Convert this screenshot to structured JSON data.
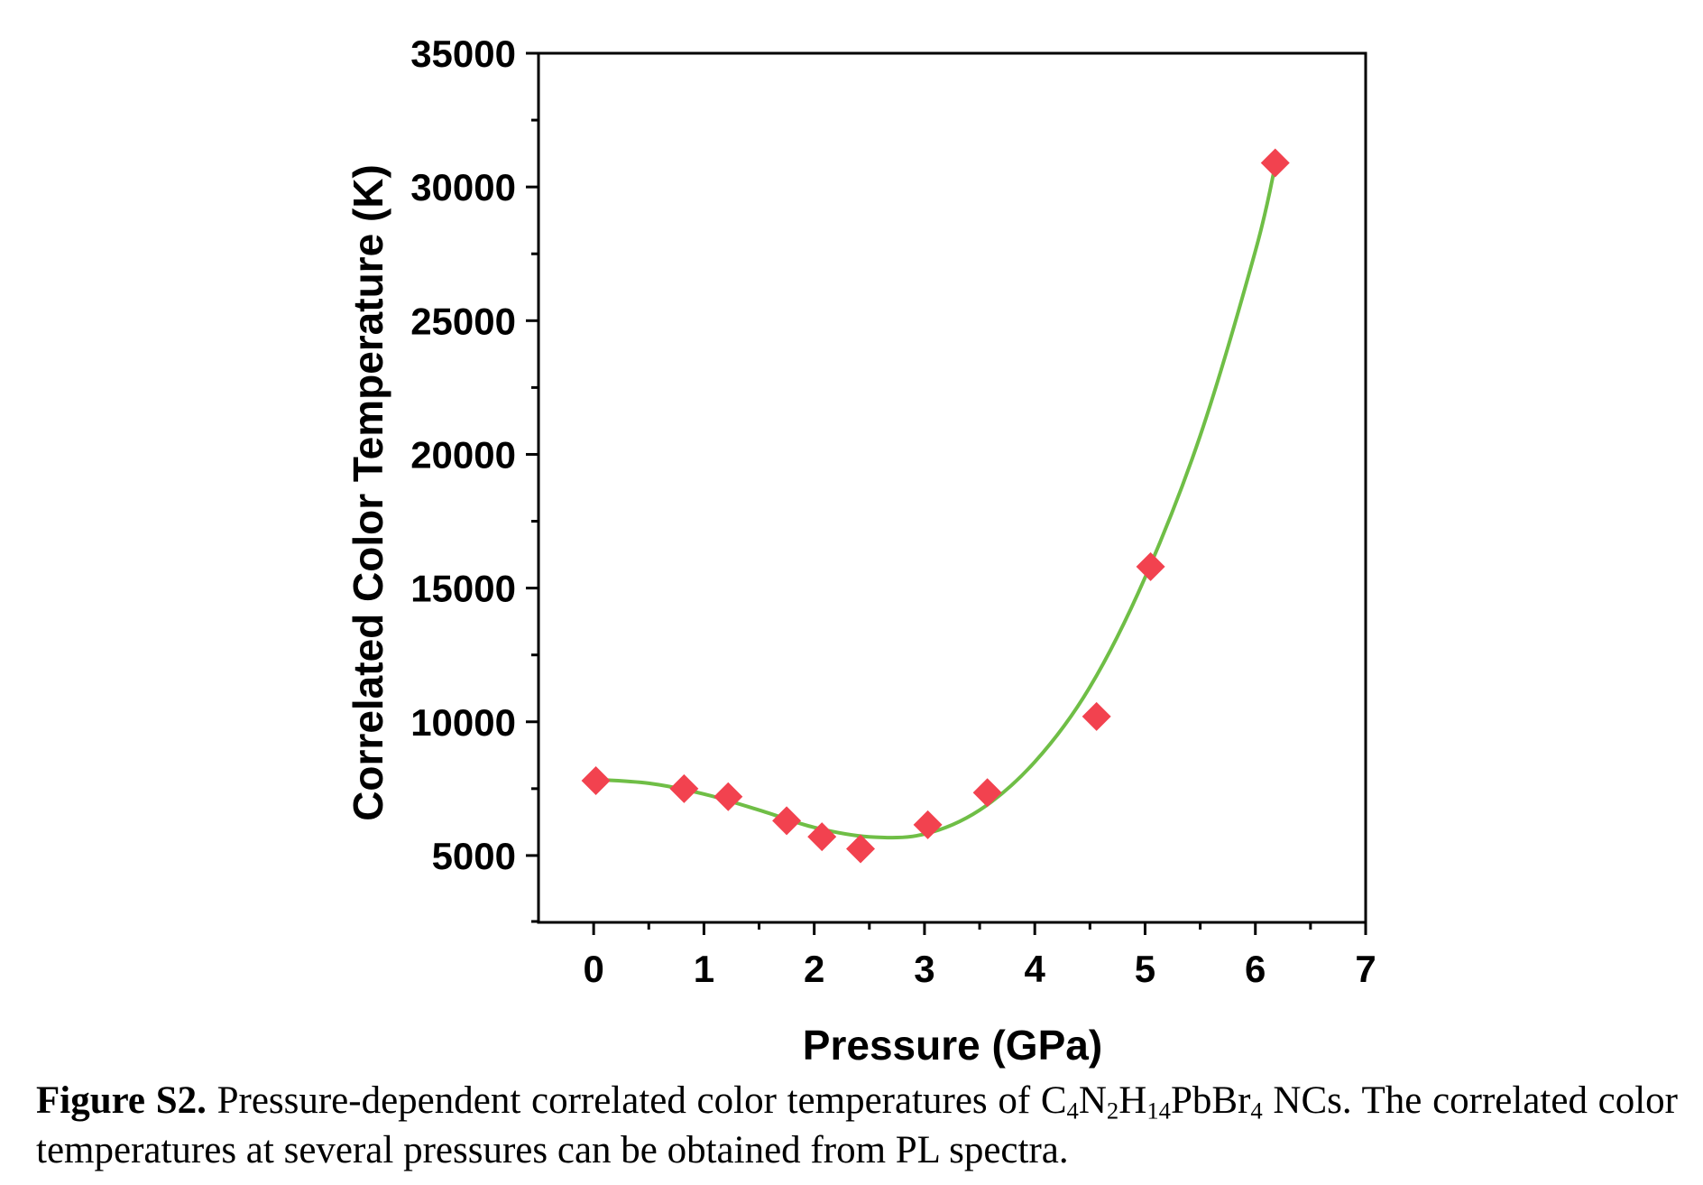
{
  "chart_data": {
    "type": "scatter",
    "xlabel": "Pressure (GPa)",
    "ylabel": "Correlated Color Temperature (K)",
    "xlim": [
      -0.5,
      7
    ],
    "ylim": [
      2500,
      35000
    ],
    "xticks": [
      "0",
      "1",
      "2",
      "3",
      "4",
      "5",
      "6",
      "7"
    ],
    "yticks": [
      "5000",
      "10000",
      "15000",
      "20000",
      "25000",
      "30000",
      "35000"
    ],
    "grid": false,
    "series": [
      {
        "marker": "diamond",
        "color": "#f2424f",
        "x": [
          0.02,
          0.82,
          1.22,
          1.75,
          2.07,
          2.42,
          3.03,
          3.57,
          4.56,
          5.05,
          6.18
        ],
        "y": [
          7800,
          7500,
          7200,
          6300,
          5700,
          5250,
          6150,
          7350,
          10200,
          15800,
          30900
        ]
      }
    ],
    "fit_curve": {
      "color": "#6fbe46",
      "x": [
        0,
        0.5,
        1.0,
        1.5,
        2.0,
        2.5,
        3.0,
        3.5,
        4.0,
        4.5,
        5.0,
        5.5,
        6.0,
        6.18
      ],
      "y": [
        7850,
        7700,
        7300,
        6700,
        6050,
        5700,
        5800,
        6700,
        8500,
        11300,
        15400,
        20700,
        27600,
        30800
      ]
    }
  },
  "caption": {
    "label": "Figure S2.",
    "text_before": " Pressure-dependent correlated color temperatures of C",
    "sub1": "4",
    "n": "N",
    "sub2": "2",
    "h": "H",
    "sub3": "14",
    "rest": "PbBr",
    "sub4": "4",
    "text_after": " NCs. The correlated color temperatures at several pressures can be obtained from PL spectra."
  }
}
